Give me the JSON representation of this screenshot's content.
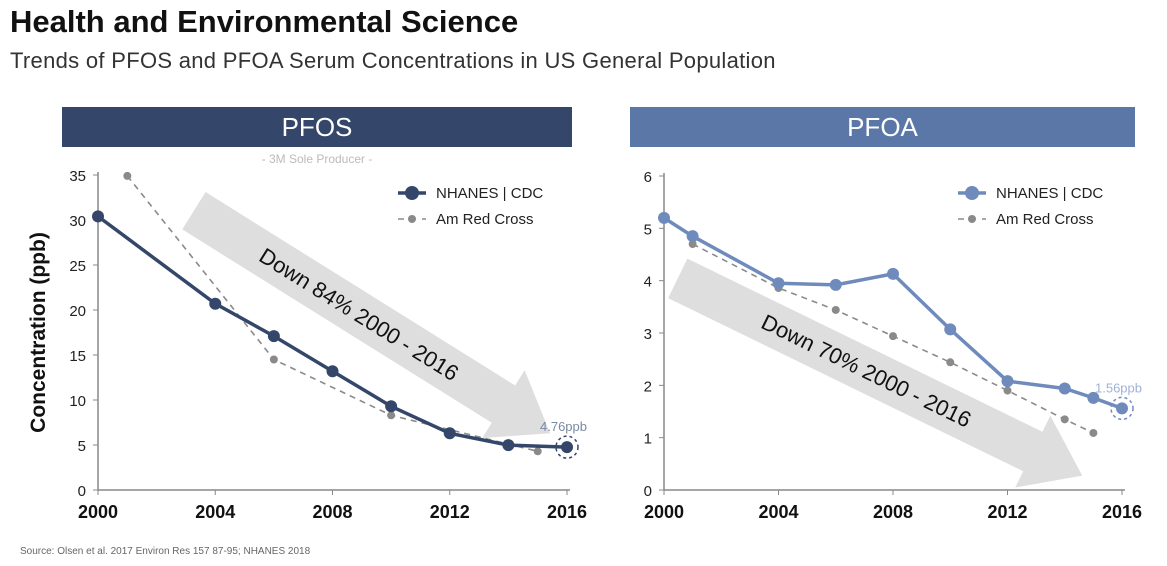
{
  "header": {
    "title": "Health and Environmental Science",
    "subtitle": "Trends of PFOS and PFOA Serum Concentrations in US General Population"
  },
  "source": "Source:  Olsen et al. 2017 Environ Res 157 87-95; NHANES 2018",
  "colors": {
    "pfos_header": "#34476a",
    "pfoa_header": "#5a77a8",
    "pfos_line": "#34476a",
    "pfoa_line": "#6f8bbb",
    "redcross": "#8a8a8a",
    "arrow": "#dedede"
  },
  "chart_data": [
    {
      "type": "line",
      "title": "PFOS",
      "note": "- 3M Sole Producer -",
      "ylabel": "Concentration (ppb)",
      "xlabel": "",
      "xlim": [
        2000,
        2016
      ],
      "ylim": [
        0,
        35
      ],
      "xticks": [
        2000,
        2004,
        2008,
        2012,
        2016
      ],
      "yticks": [
        0,
        5,
        10,
        15,
        20,
        25,
        30,
        35
      ],
      "legend_position": "top-right",
      "annotation": "Down 84% 2000 - 2016",
      "end_label": "4.76ppb",
      "series": [
        {
          "name": "NHANES | CDC",
          "x": [
            2000,
            2004,
            2006,
            2008,
            2010,
            2012,
            2014,
            2016
          ],
          "y": [
            30.4,
            20.7,
            17.1,
            13.2,
            9.3,
            6.3,
            4.99,
            4.76
          ]
        },
        {
          "name": "Am Red Cross",
          "x": [
            2001,
            2006,
            2010,
            2015
          ],
          "y": [
            34.9,
            14.5,
            8.3,
            4.3
          ]
        }
      ]
    },
    {
      "type": "line",
      "title": "PFOA",
      "xlim": [
        2000,
        2016
      ],
      "ylim": [
        0,
        6
      ],
      "xticks": [
        2000,
        2004,
        2008,
        2012,
        2016
      ],
      "yticks": [
        0,
        1,
        2,
        3,
        4,
        5,
        6
      ],
      "legend_position": "top-right",
      "annotation": "Down 70% 2000 - 2016",
      "end_label": "1.56ppb",
      "series": [
        {
          "name": "NHANES | CDC",
          "x": [
            2000,
            2001,
            2004,
            2006,
            2008,
            2010,
            2012,
            2014,
            2015,
            2016
          ],
          "y": [
            5.2,
            4.85,
            3.95,
            3.92,
            4.13,
            3.07,
            2.08,
            1.94,
            1.76,
            1.56
          ]
        },
        {
          "name": "Am Red Cross",
          "x": [
            2001,
            2004,
            2006,
            2008,
            2010,
            2012,
            2014,
            2015
          ],
          "y": [
            4.7,
            3.86,
            3.44,
            2.94,
            2.44,
            1.9,
            1.35,
            1.09
          ]
        }
      ]
    }
  ]
}
